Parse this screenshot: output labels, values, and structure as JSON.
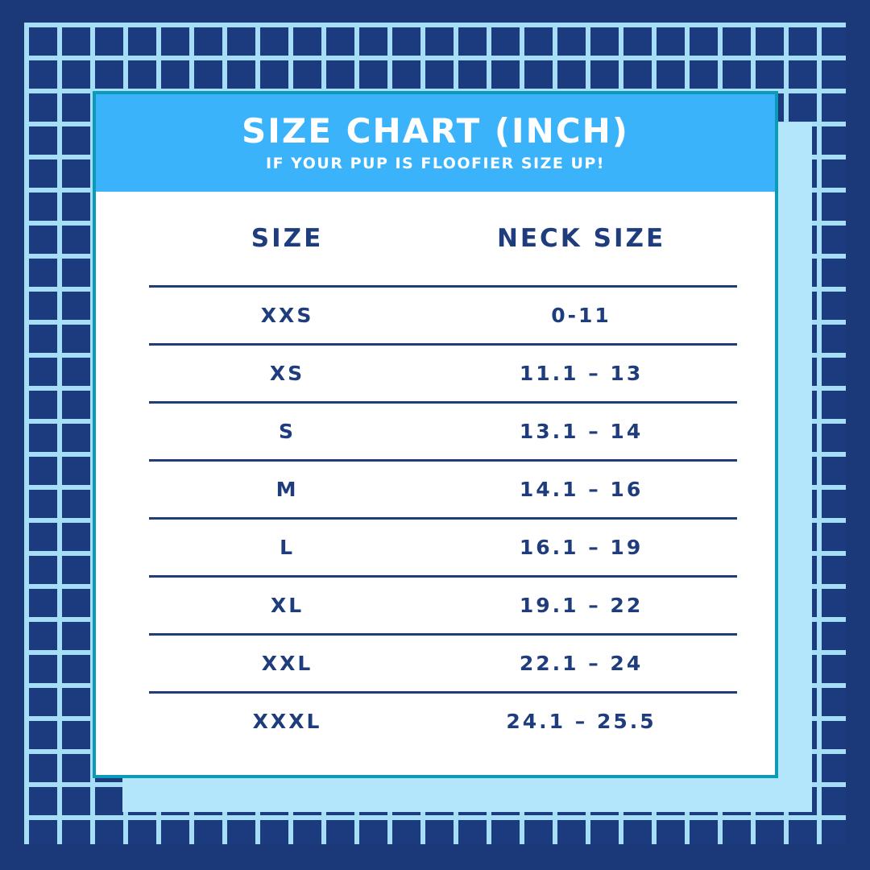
{
  "header": {
    "title": "SIZE CHART (INCH)",
    "subtitle": "IF YOUR PUP IS FLOOFIER SIZE UP!"
  },
  "table": {
    "columns": {
      "size": "SIZE",
      "neck": "NECK SIZE"
    },
    "rows": [
      {
        "size": "XXS",
        "neck": "0-11"
      },
      {
        "size": "XS",
        "neck": "11.1 – 13"
      },
      {
        "size": "S",
        "neck": "13.1 – 14"
      },
      {
        "size": "M",
        "neck": "14.1 – 16"
      },
      {
        "size": "L",
        "neck": "16.1 – 19"
      },
      {
        "size": "XL",
        "neck": "19.1 – 22"
      },
      {
        "size": "XXL",
        "neck": "22.1 – 24"
      },
      {
        "size": "XXXL",
        "neck": "24.1 – 25.5"
      }
    ]
  },
  "colors": {
    "background_navy": "#1b3878",
    "grid_line_blue": "#a6ddf7",
    "shadow_card_blue": "#b3e6fb",
    "header_blue": "#3ab3fa",
    "card_border_teal": "#0b9ab8",
    "text_navy": "#1f3d7c",
    "card_white": "#ffffff"
  }
}
